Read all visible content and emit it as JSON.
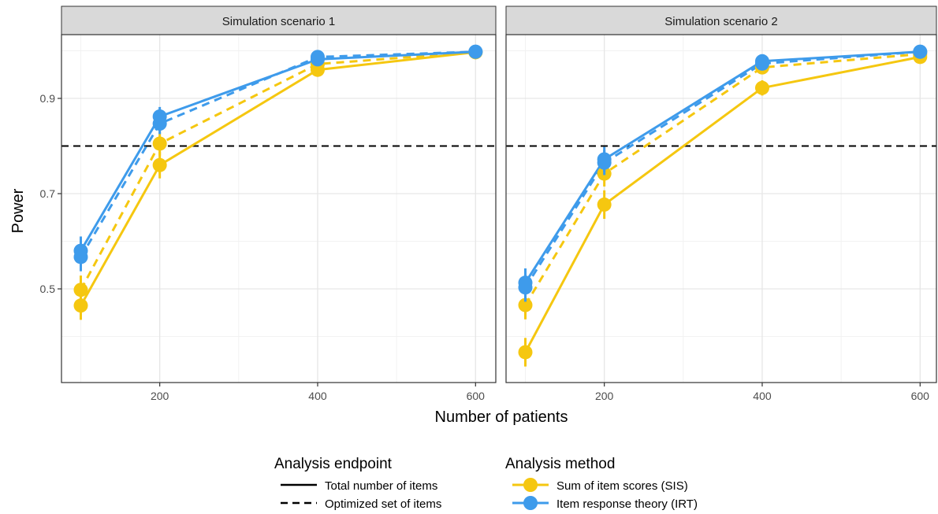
{
  "chart_data": {
    "type": "line",
    "ylabel": "Power",
    "xlabel": "Number of patients",
    "x_ticks": [
      200,
      400,
      600
    ],
    "y_ticks": [
      0.5,
      0.7,
      0.9
    ],
    "x_range": [
      77,
      620
    ],
    "y_range": [
      0.3,
      1.02
    ],
    "reference_line": {
      "y": 0.8,
      "style": "dashed"
    },
    "grid": true,
    "legend_position": "bottom",
    "colors": {
      "sis": "#F5C710",
      "irt": "#3E9BEB"
    },
    "panels": [
      {
        "strip": "Simulation scenario 1",
        "series": [
          {
            "method": "sis",
            "endpoint": "total",
            "x": [
              100,
              200,
              400,
              600
            ],
            "y": [
              0.465,
              0.76,
              0.96,
              0.997
            ],
            "err": [
              0.03,
              0.028,
              0.012,
              0.004
            ]
          },
          {
            "method": "sis",
            "endpoint": "optimized",
            "x": [
              100,
              200,
              400,
              600
            ],
            "y": [
              0.498,
              0.805,
              0.972,
              0.997
            ],
            "err": [
              0.03,
              0.025,
              0.01,
              0.004
            ]
          },
          {
            "method": "irt",
            "endpoint": "total",
            "x": [
              100,
              200,
              400,
              600
            ],
            "y": [
              0.58,
              0.862,
              0.982,
              0.998
            ],
            "err": [
              0.03,
              0.02,
              0.008,
              0.003
            ]
          },
          {
            "method": "irt",
            "endpoint": "optimized",
            "x": [
              100,
              200,
              400,
              600
            ],
            "y": [
              0.567,
              0.847,
              0.987,
              0.998
            ],
            "err": [
              0.03,
              0.022,
              0.007,
              0.003
            ]
          }
        ]
      },
      {
        "strip": "Simulation scenario 2",
        "series": [
          {
            "method": "sis",
            "endpoint": "total",
            "x": [
              100,
              200,
              400,
              600
            ],
            "y": [
              0.367,
              0.677,
              0.922,
              0.987
            ],
            "err": [
              0.03,
              0.03,
              0.016,
              0.006
            ]
          },
          {
            "method": "sis",
            "endpoint": "optimized",
            "x": [
              100,
              200,
              400,
              600
            ],
            "y": [
              0.466,
              0.742,
              0.965,
              0.993
            ],
            "err": [
              0.03,
              0.027,
              0.011,
              0.005
            ]
          },
          {
            "method": "irt",
            "endpoint": "total",
            "x": [
              100,
              200,
              400,
              600
            ],
            "y": [
              0.513,
              0.772,
              0.978,
              0.998
            ],
            "err": [
              0.03,
              0.026,
              0.009,
              0.003
            ]
          },
          {
            "method": "irt",
            "endpoint": "optimized",
            "x": [
              100,
              200,
              400,
              600
            ],
            "y": [
              0.503,
              0.765,
              0.973,
              0.998
            ],
            "err": [
              0.03,
              0.026,
              0.009,
              0.003
            ]
          }
        ]
      }
    ],
    "legend": {
      "endpoint_title": "Analysis endpoint",
      "endpoint_items": [
        {
          "key": "total",
          "label": "Total number of items",
          "linetype": "solid"
        },
        {
          "key": "optimized",
          "label": "Optimized set of items",
          "linetype": "dashed"
        }
      ],
      "method_title": "Analysis method",
      "method_items": [
        {
          "key": "sis",
          "label": "Sum of item scores (SIS)"
        },
        {
          "key": "irt",
          "label": "Item response theory (IRT)"
        }
      ]
    }
  }
}
